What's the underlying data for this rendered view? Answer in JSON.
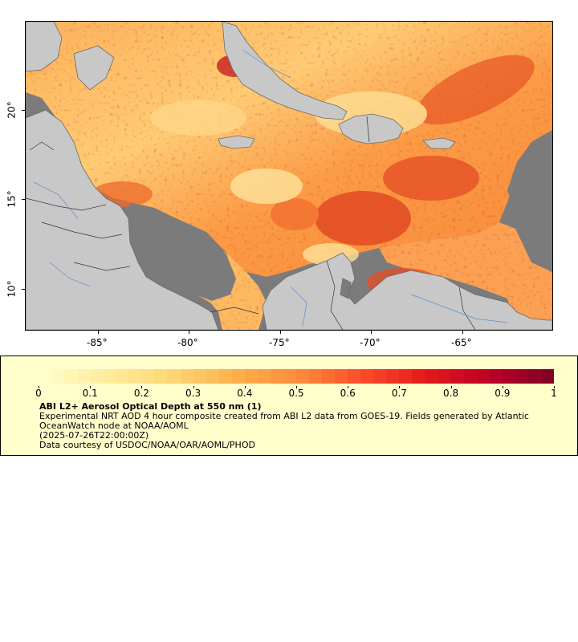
{
  "map": {
    "x_axis_ticks": [
      "-85°",
      "-80°",
      "-75°",
      "-70°",
      "-65°"
    ],
    "x_axis_values": [
      -85,
      -80,
      -75,
      -70,
      -65
    ],
    "y_axis_ticks": [
      "20°",
      "15°",
      "10°"
    ],
    "y_axis_values": [
      20,
      15,
      10
    ],
    "lon_range": [
      -89,
      -60
    ],
    "lat_range": [
      7.8,
      24.9
    ],
    "colors": {
      "no_data": "#7b7b7b",
      "land": "#c8c8c8",
      "coastline": "#6a6a6a",
      "borders": "#333333",
      "rivers": "#5f8fc7"
    }
  },
  "legend": {
    "colorbar_ticks": [
      "0",
      "0.1",
      "0.2",
      "0.3",
      "0.4",
      "0.5",
      "0.6",
      "0.7",
      "0.8",
      "0.9",
      "1"
    ],
    "colorbar_range": [
      0,
      1
    ],
    "colormap": [
      "#ffffcc",
      "#ffeda0",
      "#fed976",
      "#feb24c",
      "#fd8d3c",
      "#fc4e2a",
      "#e31a1c",
      "#bd0026",
      "#800026"
    ],
    "title": "ABI L2+ Aerosol Optical Depth at 550 nm (1)",
    "description": "Experimental NRT AOD 4 hour composite created from ABI L2 data from GOES-19. Fields generated by Atlantic OceanWatch node at NOAA/AOML",
    "timestamp": "(2025-07-26T22:00:00Z)",
    "credit": "Data courtesy of USDOC/NOAA/OAR/AOML/PHOD"
  }
}
